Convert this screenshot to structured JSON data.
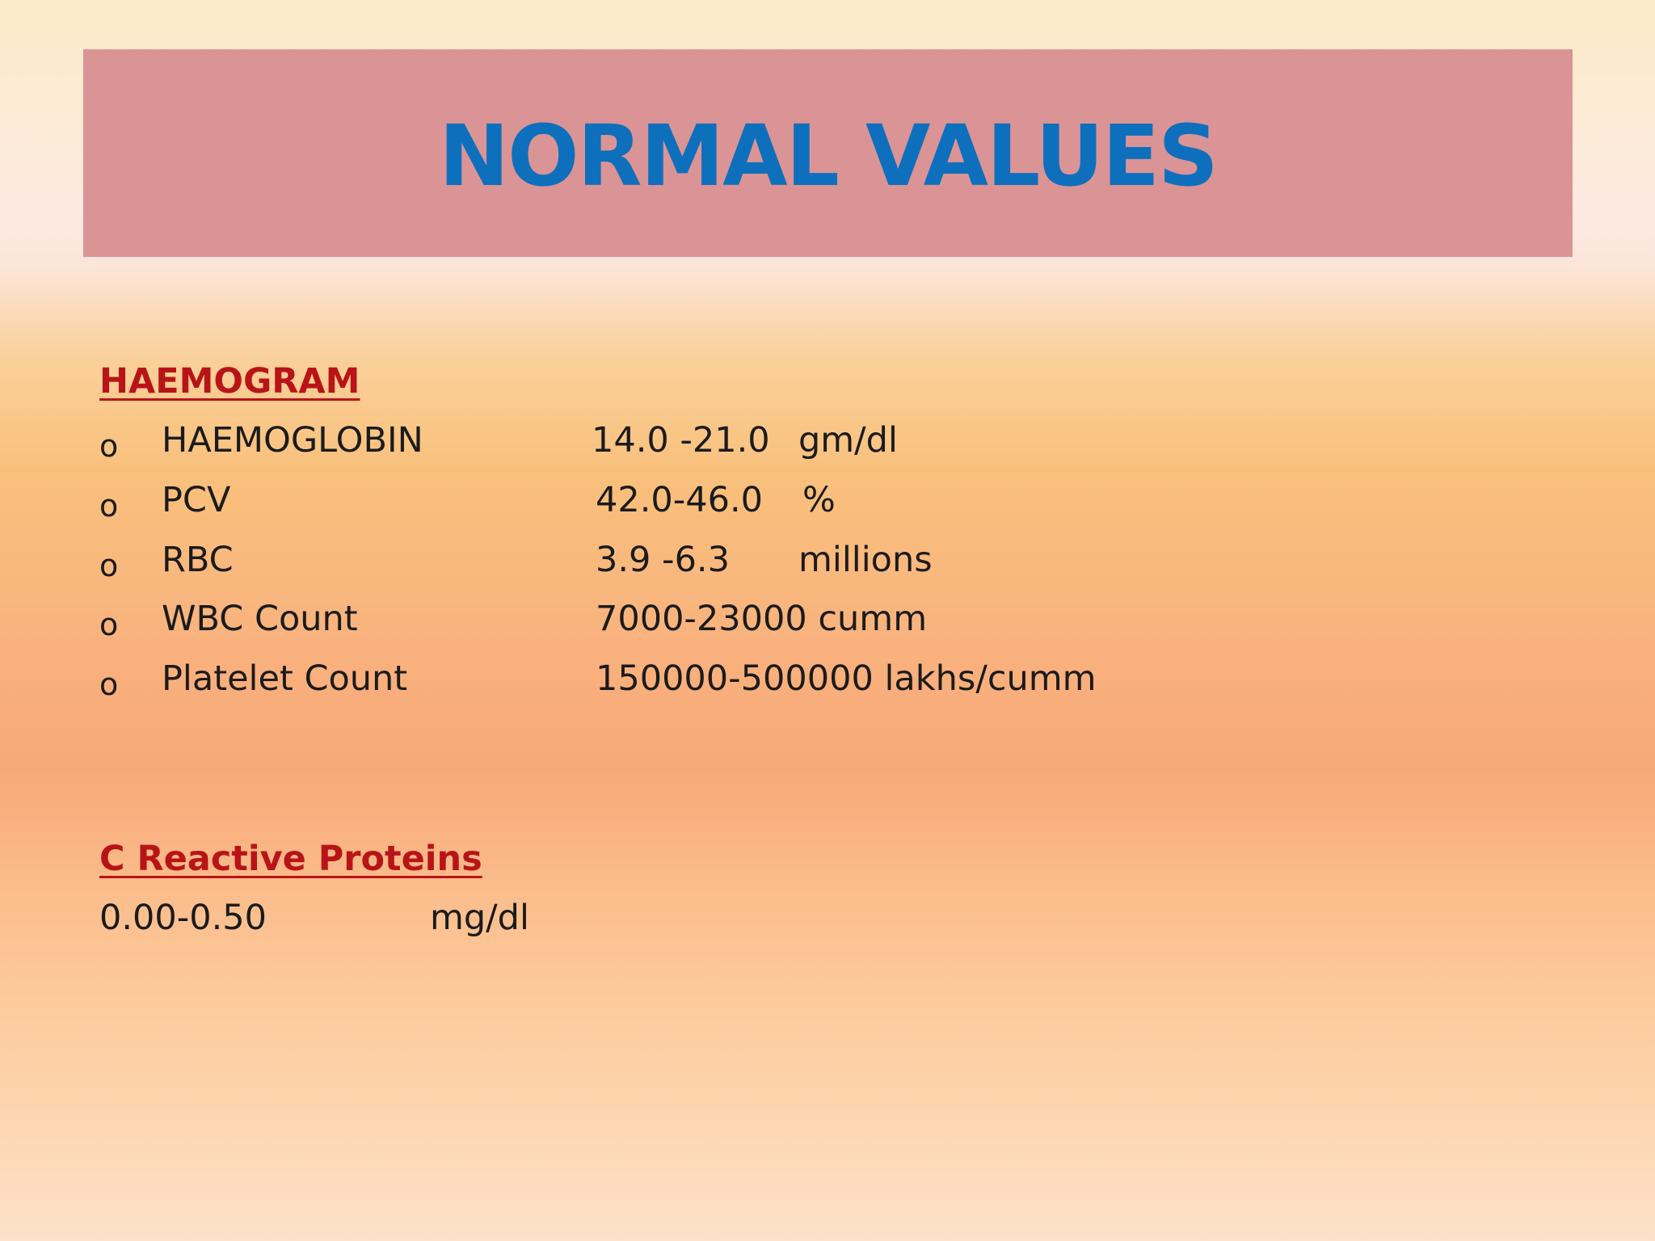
{
  "title": "NORMAL VALUES",
  "haemogram": {
    "heading": "HAEMOGRAM",
    "bullet_glyph": "o",
    "items": [
      {
        "label": "HAEMOGLOBIN",
        "value": "14.0 -21.0",
        "unit": "gm/dl"
      },
      {
        "label": "PCV",
        "value": "42.0-46.0",
        "unit": "%"
      },
      {
        "label": "RBC",
        "value": "3.9 -6.3",
        "unit": "millions"
      },
      {
        "label": "WBC Count",
        "value": "7000-23000 cumm",
        "unit": ""
      },
      {
        "label": "Platelet Count",
        "value": "150000-500000 lakhs/cumm",
        "unit": ""
      }
    ]
  },
  "crp": {
    "heading": "C Reactive Proteins",
    "value": "0.00-0.50",
    "unit": "mg/dl"
  },
  "colors": {
    "title_text": "#0e6fbd",
    "title_band": "#da9495",
    "heading_text": "#b81418"
  }
}
